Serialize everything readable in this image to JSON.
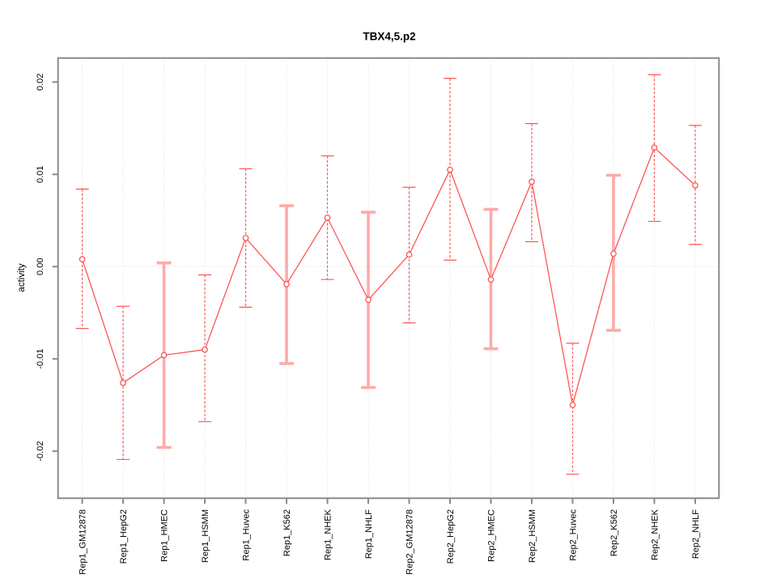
{
  "chart_data": {
    "type": "line",
    "title": "TBX4,5.p2",
    "xlabel": "",
    "ylabel": "activity",
    "legend": "none",
    "grid": "vertical dotted line per category plus dotted horizontal zero line",
    "categories": [
      "Rep1_GM12878",
      "Rep1_HepG2",
      "Rep1_HMEC",
      "Rep1_HSMM",
      "Rep1_Huvec",
      "Rep1_K562",
      "Rep1_NHEK",
      "Rep1_NHLF",
      "Rep2_GM12878",
      "Rep2_HepG2",
      "Rep2_HMEC",
      "Rep2_HSMM",
      "Rep2_Huvec",
      "Rep2_K562",
      "Rep2_NHEK",
      "Rep2_NHLF"
    ],
    "values": [
      0.0008,
      -0.0126,
      -0.0096,
      -0.009,
      0.0031,
      -0.0019,
      0.0053,
      -0.0036,
      0.0013,
      0.0105,
      -0.0014,
      0.0092,
      -0.015,
      0.0014,
      0.0129,
      0.0088
    ],
    "err_high": [
      0.0084,
      -0.0043,
      0.0004,
      -0.0009,
      0.0106,
      0.0066,
      0.012,
      0.0059,
      0.0086,
      0.0204,
      0.0062,
      0.0155,
      -0.0083,
      0.0099,
      0.0208,
      0.0153
    ],
    "err_low": [
      -0.0067,
      -0.0209,
      -0.0196,
      -0.0168,
      -0.0044,
      -0.0105,
      -0.0014,
      -0.0131,
      -0.0061,
      0.0007,
      -0.0089,
      0.0027,
      -0.0225,
      -0.0069,
      0.0049,
      0.0024
    ],
    "bar_styles": [
      "thin",
      "thin",
      "thick",
      "thin",
      "thin",
      "thick",
      "thin",
      "thick",
      "thin",
      "thin",
      "thick",
      "thin",
      "thin",
      "thick",
      "thin",
      "thin"
    ],
    "yticks": [
      -0.02,
      -0.01,
      0,
      0.01,
      0.02
    ],
    "ytick_labels": [
      "-0.02",
      "-0.01",
      "0.00",
      "0.01",
      "0.02"
    ],
    "ylim": [
      -0.0251,
      0.0226
    ],
    "marker": "open-circle",
    "colors": {
      "series": "#ff5555",
      "light_error_bar": "#ffaaaa",
      "frame": "#8a8a8a",
      "grid": "#dadada",
      "zero_line": "#e7e7e7",
      "text": "#000000",
      "background": "#ffffff"
    }
  }
}
